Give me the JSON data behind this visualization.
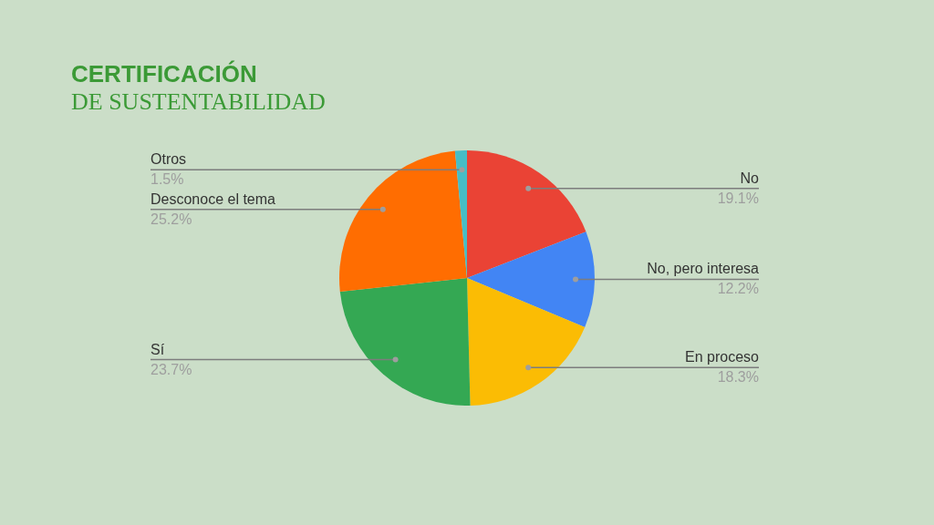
{
  "chart_data": {
    "type": "pie",
    "title": "CERTIFICACIÓN",
    "subtitle": "DE SUSTENTABILIDAD",
    "categories": [
      "No",
      "No, pero interesa",
      "En proceso",
      "Sí",
      "Desconoce el tema",
      "Otros"
    ],
    "values": [
      19.1,
      12.2,
      18.3,
      23.7,
      25.2,
      1.5
    ],
    "colors": [
      "#ea4335",
      "#4285f4",
      "#fbbc04",
      "#34a853",
      "#ff6d01",
      "#46bdc6"
    ],
    "value_labels": [
      "19.1%",
      "12.2%",
      "18.3%",
      "23.7%",
      "25.2%",
      "1.5%"
    ]
  }
}
